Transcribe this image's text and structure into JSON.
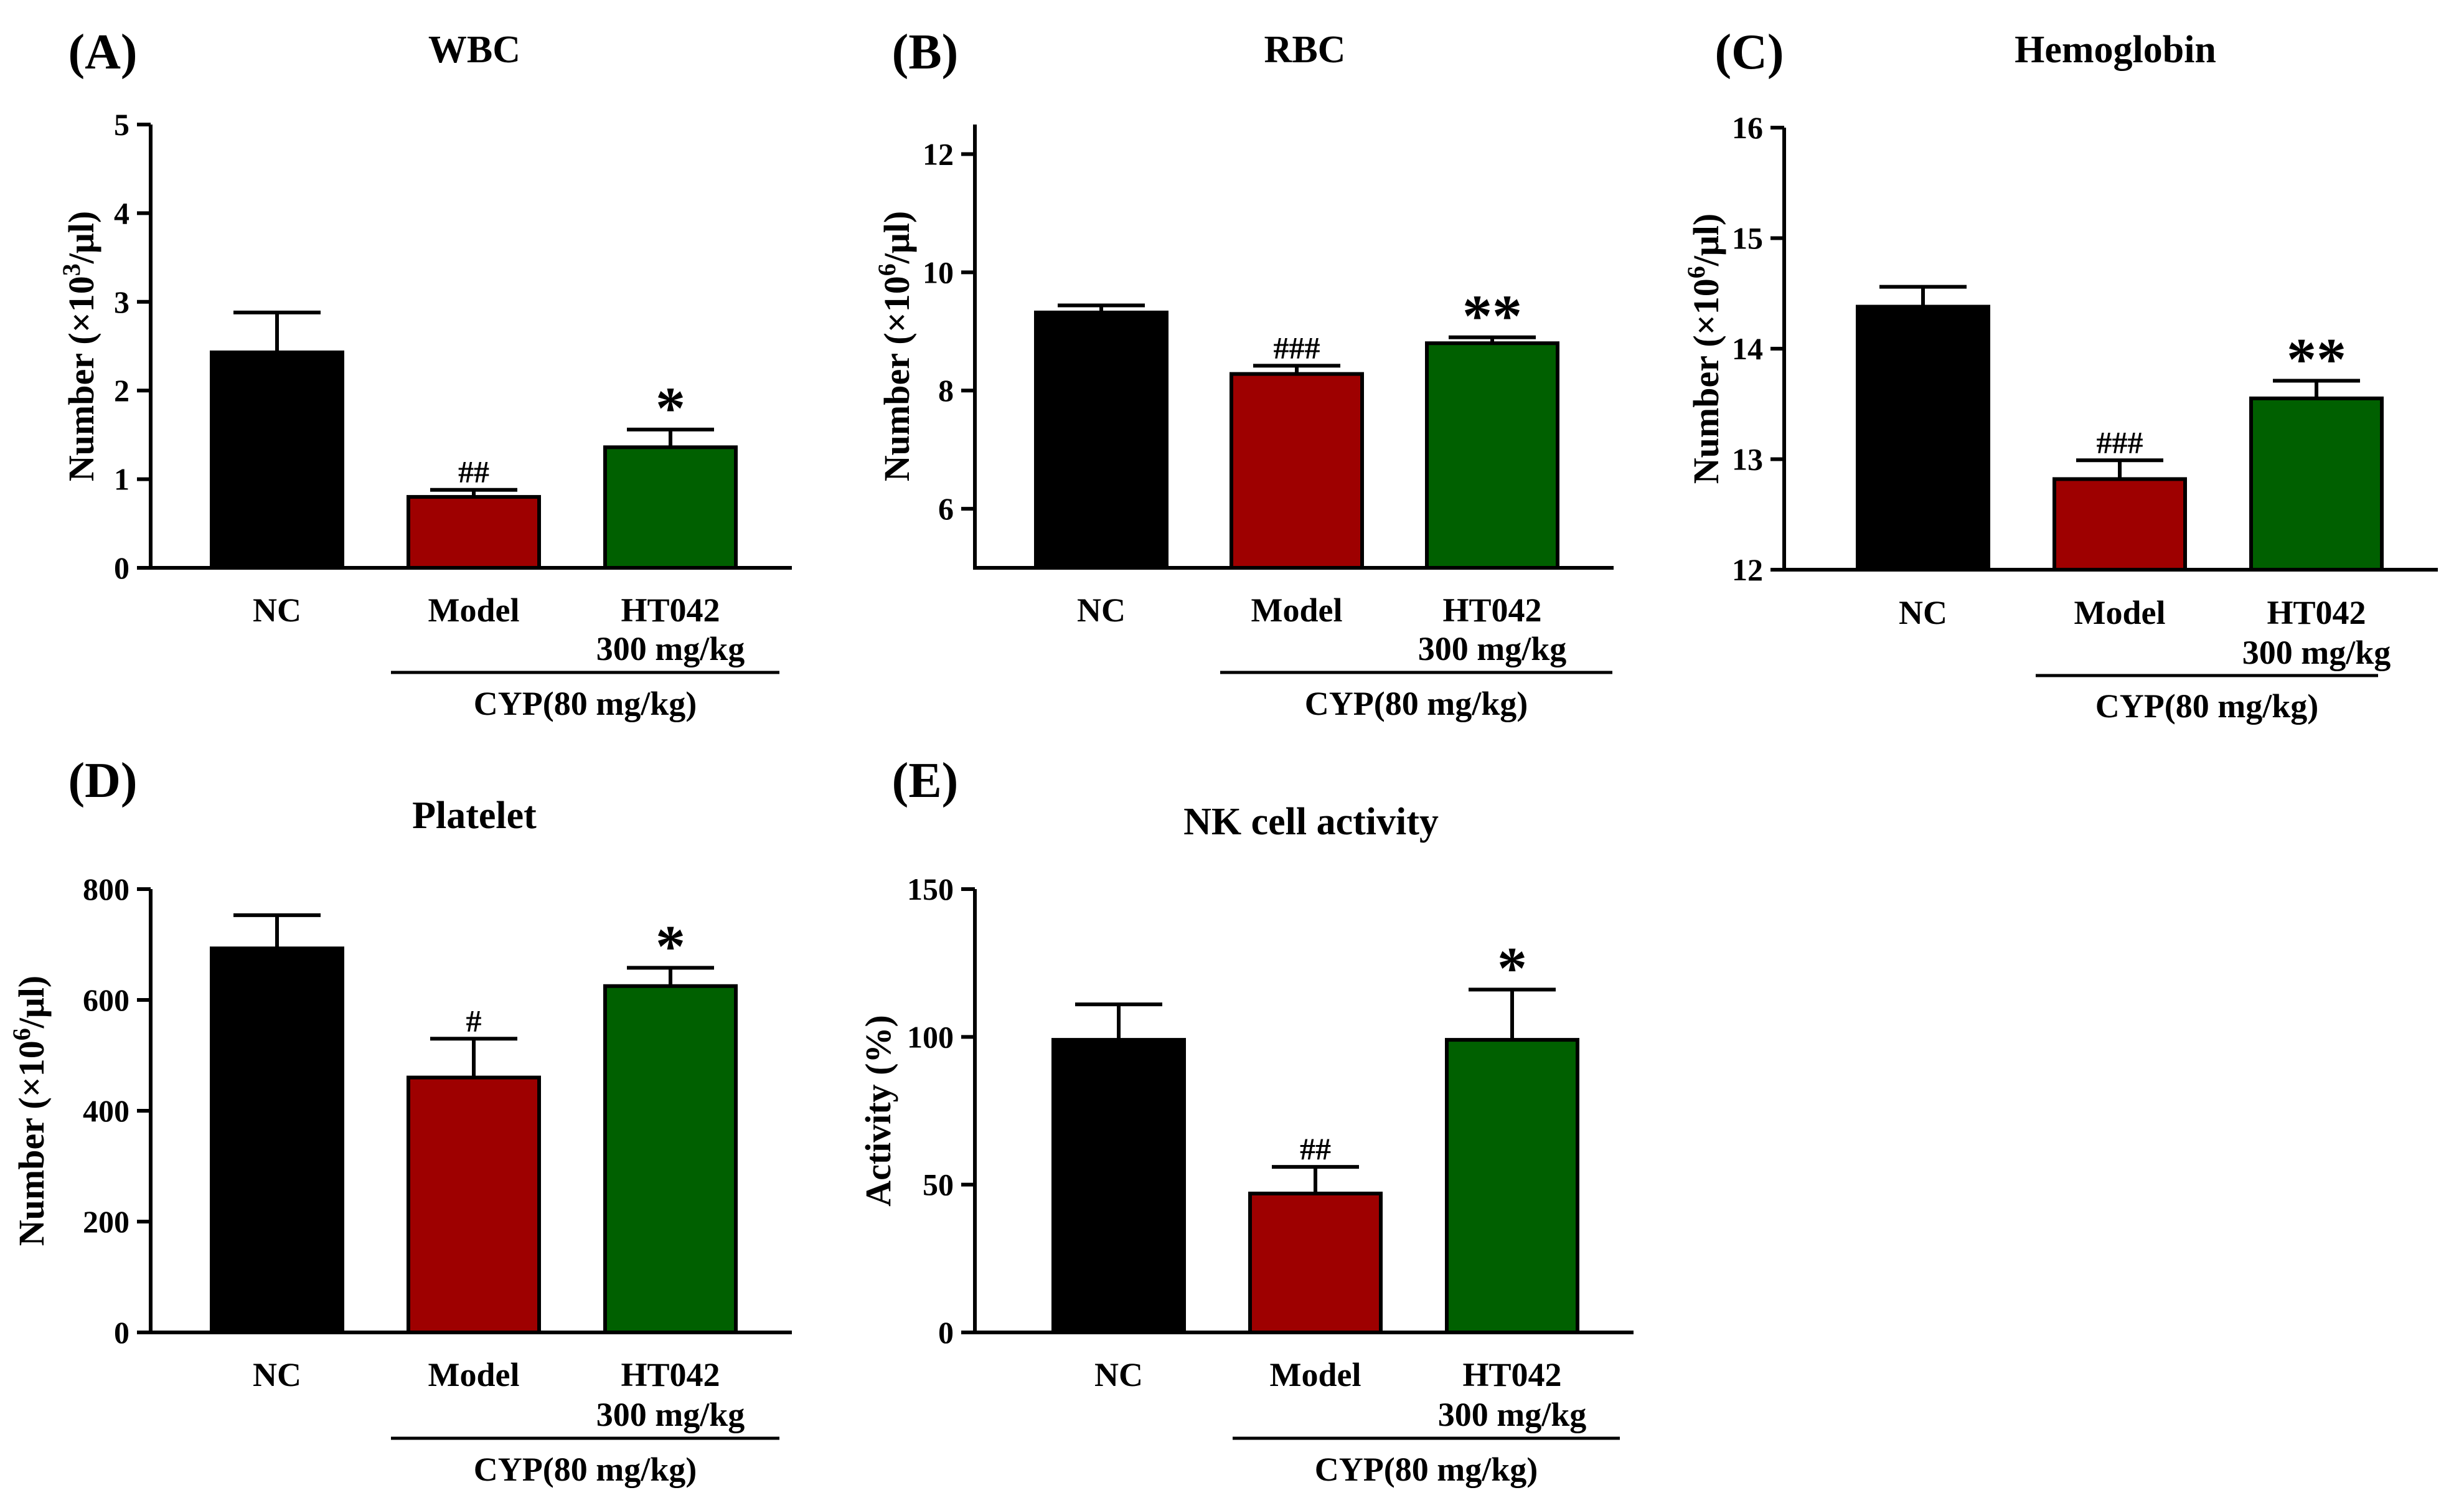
{
  "figure": {
    "categories": [
      "NC",
      "Model",
      "HT042"
    ],
    "category_sublabel": "300 mg/kg",
    "group_label": "CYP(80 mg/kg)",
    "bar_colors": [
      "#000000",
      "#9e0000",
      "#006000"
    ]
  },
  "chart_data": [
    {
      "type": "bar",
      "panel": "(A)",
      "title": "WBC",
      "ylabel_main": "Number (×10",
      "ylabel_sup": "3",
      "ylabel_end": "/μl)",
      "categories": [
        "NC",
        "Model",
        "HT042"
      ],
      "values": [
        2.43,
        0.8,
        1.36
      ],
      "errors": [
        0.45,
        0.08,
        0.2
      ],
      "significance": [
        "",
        "##",
        "*"
      ],
      "ylim": [
        0,
        5
      ],
      "yticks": [
        "0",
        "1",
        "2",
        "3",
        "4",
        "5"
      ]
    },
    {
      "type": "bar",
      "panel": "(B)",
      "title": "RBC",
      "ylabel_main": "Number (×10",
      "ylabel_sup": "6",
      "ylabel_end": "/μl)",
      "categories": [
        "NC",
        "Model",
        "HT042"
      ],
      "values": [
        9.32,
        8.28,
        8.8
      ],
      "errors": [
        0.12,
        0.14,
        0.1
      ],
      "significance": [
        "",
        "###",
        "**"
      ],
      "ylim": [
        5,
        12.5
      ],
      "yticks": [
        "6",
        "8",
        "10",
        "12"
      ]
    },
    {
      "type": "bar",
      "panel": "(C)",
      "title": "Hemoglobin",
      "ylabel_main": "Number (×10",
      "ylabel_sup": "6",
      "ylabel_end": "/μl)",
      "categories": [
        "NC",
        "Model",
        "HT042"
      ],
      "values": [
        14.38,
        12.82,
        13.55
      ],
      "errors": [
        0.18,
        0.17,
        0.16
      ],
      "significance": [
        "",
        "###",
        "**"
      ],
      "ylim": [
        12,
        16
      ],
      "yticks": [
        "12",
        "13",
        "14",
        "15",
        "16"
      ]
    },
    {
      "type": "bar",
      "panel": "(D)",
      "title": "Platelet",
      "ylabel_main": "Number (×10",
      "ylabel_sup": "6",
      "ylabel_end": "/μl)",
      "categories": [
        "NC",
        "Model",
        "HT042"
      ],
      "values": [
        693,
        460,
        625
      ],
      "errors": [
        60,
        70,
        33
      ],
      "significance": [
        "",
        "#",
        "*"
      ],
      "ylim": [
        0,
        800
      ],
      "yticks": [
        "0",
        "200",
        "400",
        "600",
        "800"
      ]
    },
    {
      "type": "bar",
      "panel": "(E)",
      "title": "NK cell activity",
      "ylabel_main": "Activity (%)",
      "ylabel_sup": "",
      "ylabel_end": "",
      "categories": [
        "NC",
        "Model",
        "HT042"
      ],
      "values": [
        99,
        47,
        99
      ],
      "errors": [
        12,
        9,
        17
      ],
      "significance": [
        "",
        "##",
        "*"
      ],
      "ylim": [
        0,
        150
      ],
      "yticks": [
        "0",
        "50",
        "100",
        "150"
      ]
    }
  ]
}
